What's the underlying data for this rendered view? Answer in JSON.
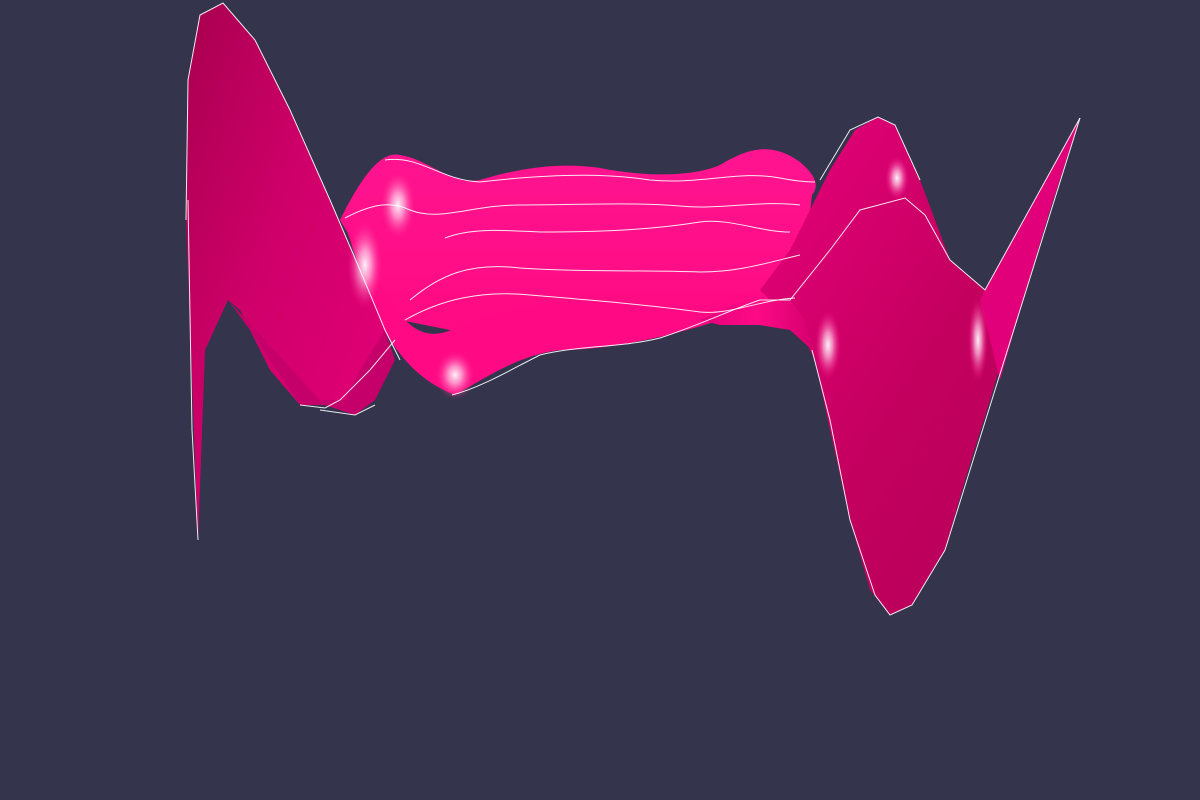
{
  "scene": {
    "background_color": "#34354d",
    "surface_color": "#ff0a82",
    "surface_shadow_color": "#b8005a",
    "mesh_line_color": "#ffffff",
    "highlight_color": "#ffffff"
  }
}
